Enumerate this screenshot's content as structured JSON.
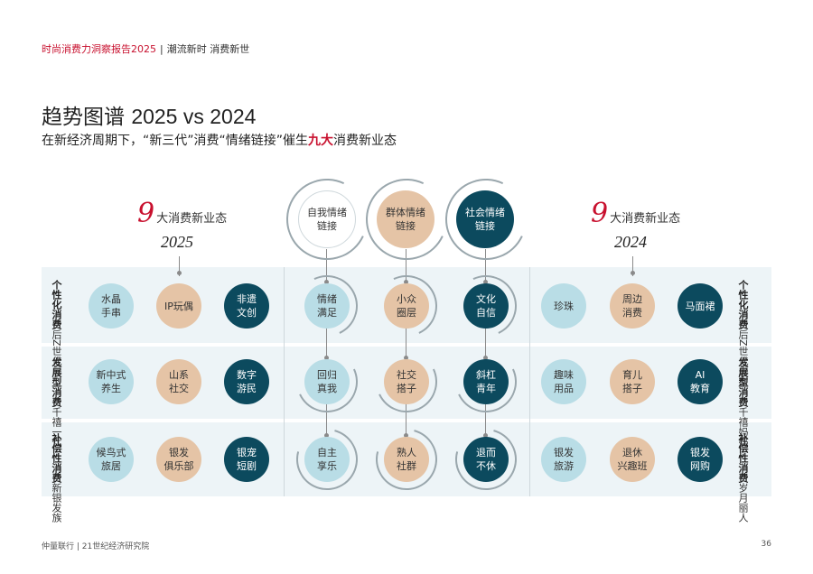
{
  "header": {
    "report": "时尚消费力洞察报告2025",
    "separator": "|",
    "tagline": "潮流新时 消费新世"
  },
  "title": {
    "main": "趋势图谱 ",
    "years": "2025 vs 2024"
  },
  "subtitle": {
    "before": "在新经济周期下，“新三代”消费“情绪链接”催生",
    "highlight": "九大",
    "after": "消费新业态"
  },
  "left_panel": {
    "count": "9",
    "count_label": "大消费新业态",
    "year": "2025"
  },
  "right_panel": {
    "count": "9",
    "count_label": "大消费新业态",
    "year": "2024"
  },
  "row_labels_left": [
    {
      "group": "后Z世代",
      "type": "个性化消费"
    },
    {
      "group": "千禧一代",
      "type": "发展型消费"
    },
    {
      "group": "新银发族",
      "type": "补偿性消费"
    }
  ],
  "row_labels_right": [
    {
      "group": "后Z世代少女",
      "type": "个性化消费"
    },
    {
      "group": "千禧妈妈",
      "type": "发展型消费"
    },
    {
      "group": "岁月丽人",
      "type": "补偿性消费"
    }
  ],
  "center_headers": [
    "自我情绪\n链接",
    "群体情绪\n链接",
    "社会情绪\n链接"
  ],
  "grid_2025": [
    [
      "水晶\n手串",
      "IP玩偶",
      "非遗\n文创"
    ],
    [
      "新中式\n养生",
      "山系\n社交",
      "数字\n游民"
    ],
    [
      "候鸟式\n旅居",
      "银发\n俱乐部",
      "银宠\n短剧"
    ]
  ],
  "grid_center": [
    [
      "情绪\n满足",
      "小众\n圈层",
      "文化\n自信"
    ],
    [
      "回归\n真我",
      "社交\n搭子",
      "斜杠\n青年"
    ],
    [
      "自主\n享乐",
      "熟人\n社群",
      "退而\n不休"
    ]
  ],
  "grid_2024": [
    [
      "珍珠",
      "周边\n消费",
      "马面裙"
    ],
    [
      "趣味\n用品",
      "育儿\n搭子",
      "AI\n教育"
    ],
    [
      "银发\n旅游",
      "退休\n兴趣班",
      "银发\n网购"
    ]
  ],
  "colors": {
    "light": "#b9dde6",
    "tan": "#e5c4a6",
    "dark": "#0c4a5e",
    "accent": "#c8102e",
    "band": "#edf4f7"
  },
  "footer": {
    "left": "仲量联行 | 21世纪经济研究院",
    "page": "36"
  }
}
